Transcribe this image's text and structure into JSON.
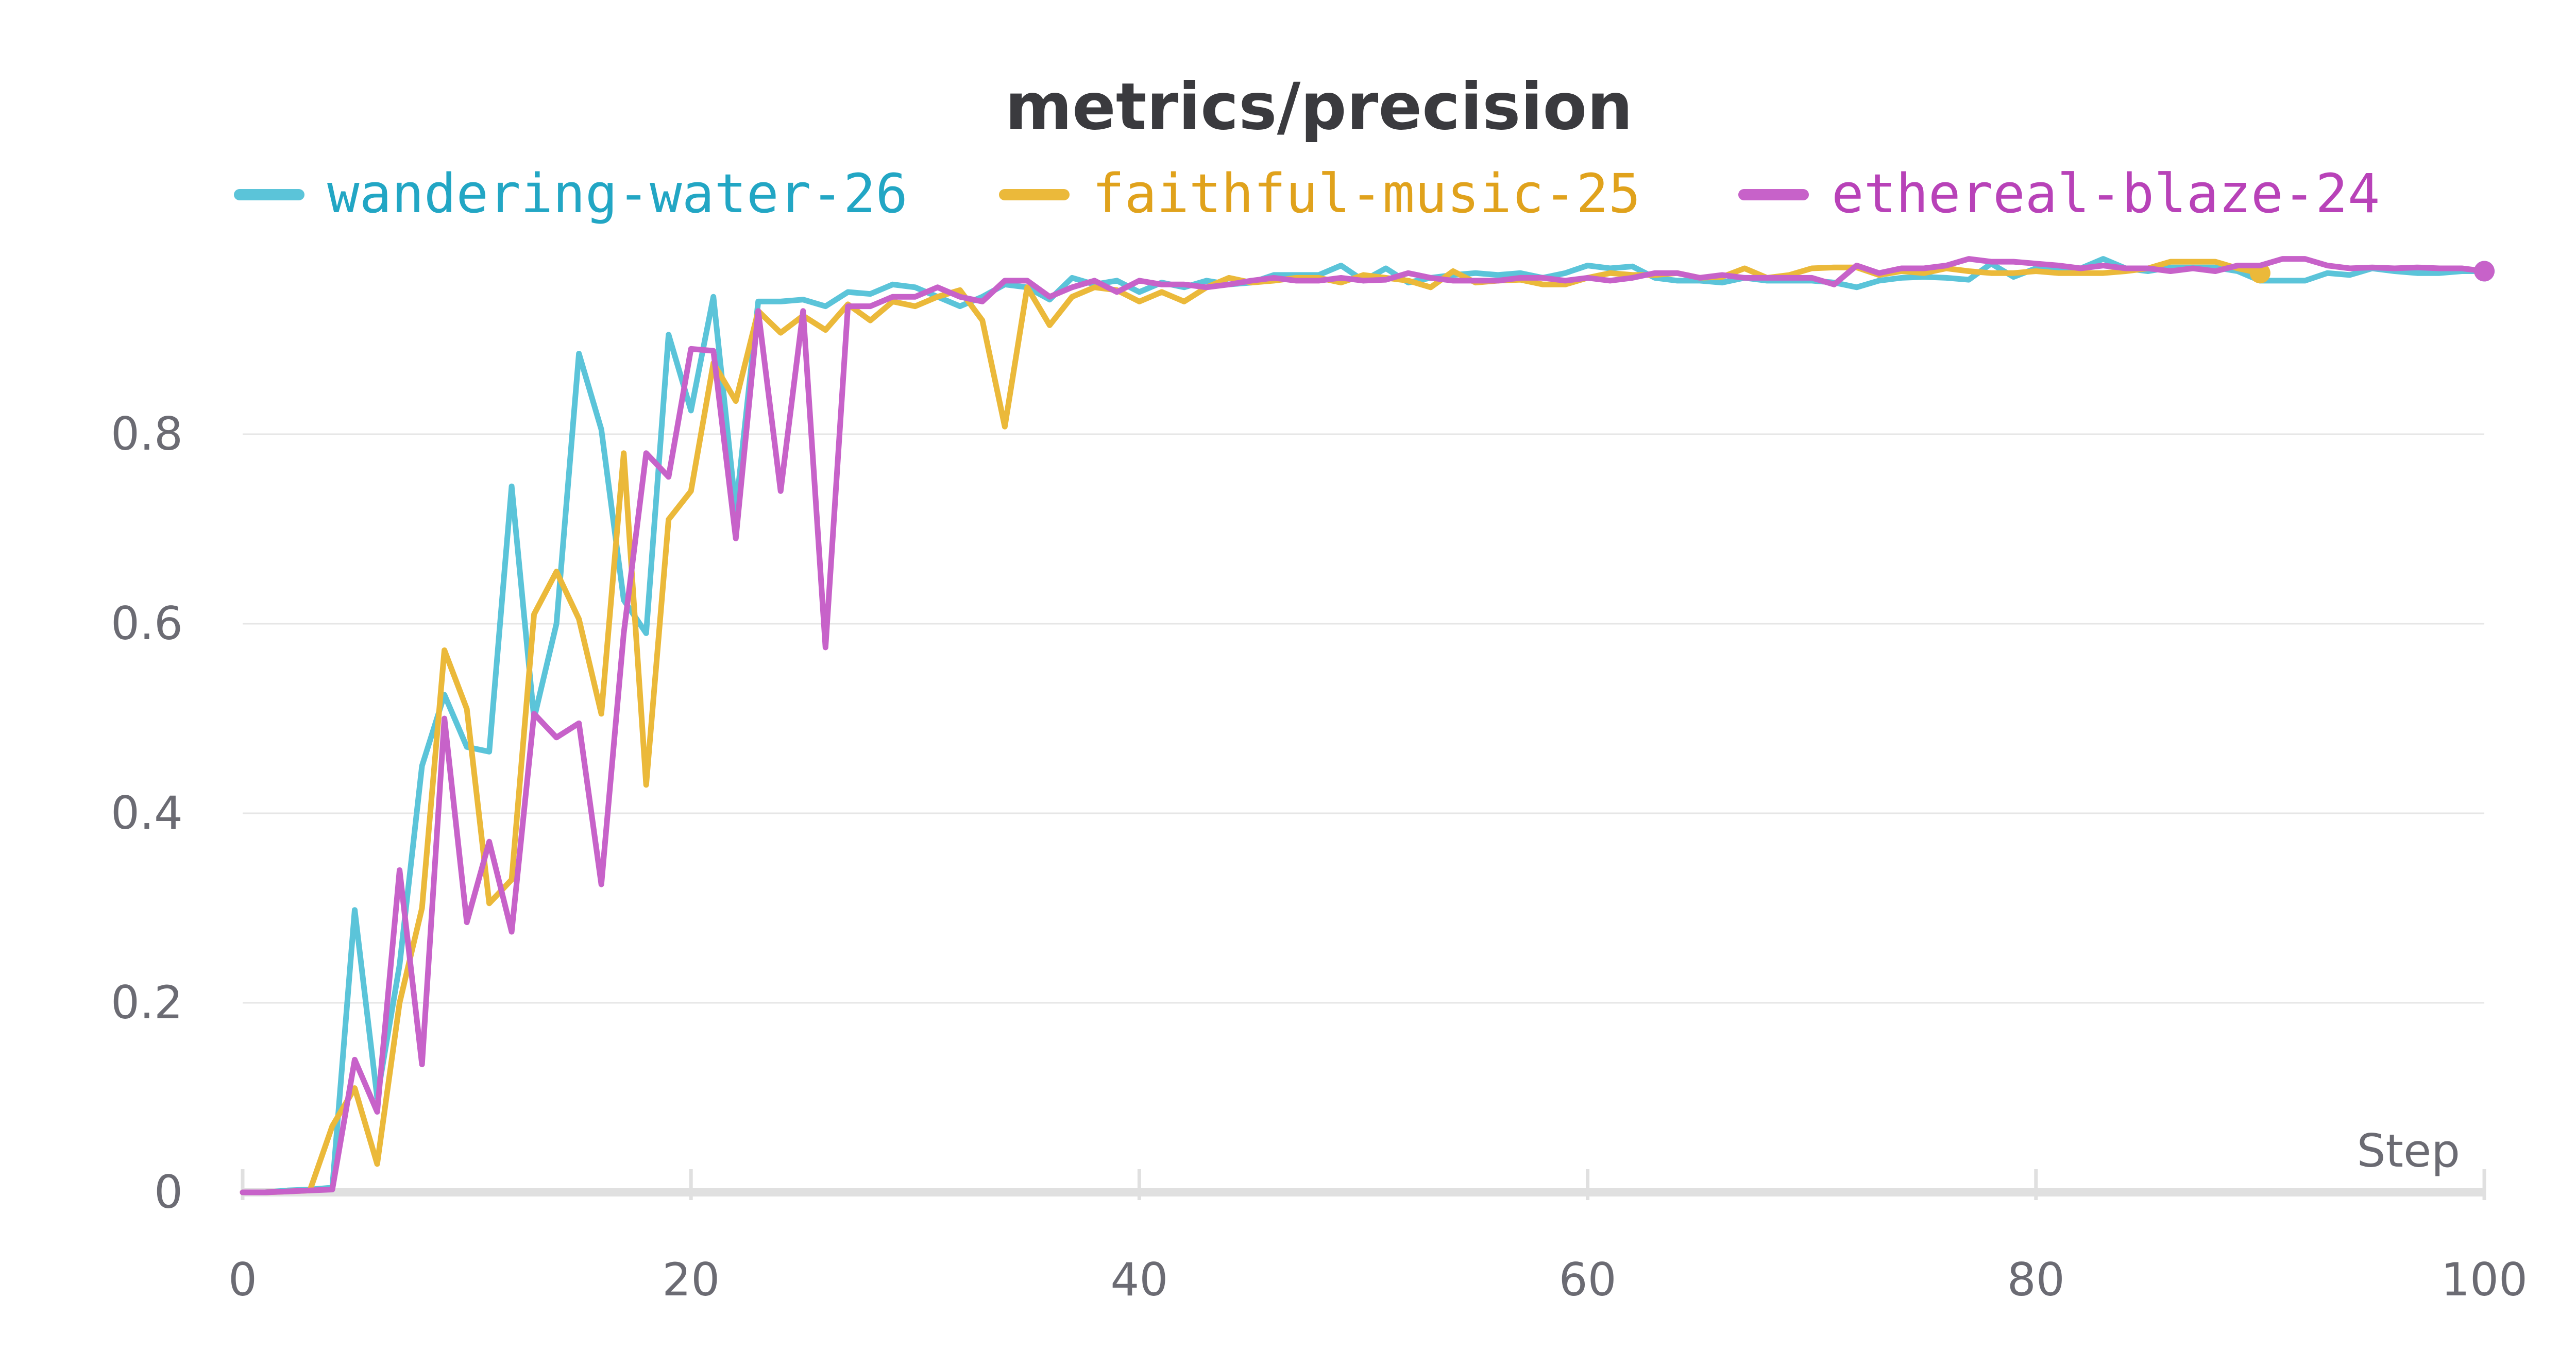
{
  "colors": {
    "background": "#ffffff",
    "grid": "#e6e6e6",
    "axis": "#e0e0e0",
    "tick_text": "#6b6b73",
    "title": "#3a3a3e"
  },
  "chart_data": {
    "type": "line",
    "title": "metrics/precision",
    "xlabel": "Step",
    "ylabel": "",
    "xlim": [
      0,
      100
    ],
    "ylim": [
      0,
      1
    ],
    "grid": true,
    "legend_position": "top",
    "x_ticks": [
      "0",
      "20",
      "40",
      "60",
      "80",
      "100"
    ],
    "y_ticks": [
      "0",
      "0.2",
      "0.4",
      "0.6",
      "0.8"
    ],
    "series": [
      {
        "name": "wandering-water-26",
        "color": "#5bc4d9",
        "legend_color": "#22a6c4",
        "x": [
          0,
          1,
          2,
          3,
          4,
          5,
          6,
          7,
          8,
          9,
          10,
          11,
          12,
          13,
          14,
          15,
          16,
          17,
          18,
          19,
          20,
          21,
          22,
          23,
          24,
          25,
          26,
          27,
          28,
          29,
          30,
          31,
          32,
          33,
          34,
          35,
          36,
          37,
          38,
          39,
          40,
          41,
          42,
          43,
          44,
          45,
          46,
          47,
          48,
          49,
          50,
          51,
          52,
          53,
          54,
          55,
          56,
          57,
          58,
          59,
          60,
          61,
          62,
          63,
          64,
          65,
          66,
          67,
          68,
          69,
          70,
          71,
          72,
          73,
          74,
          75,
          76,
          77,
          78,
          79,
          80,
          81,
          82,
          83,
          84,
          85,
          86,
          87,
          88,
          89,
          90,
          91,
          92,
          93,
          94,
          95,
          96,
          97,
          98,
          99,
          100
        ],
        "y": [
          0,
          0,
          0.002,
          0.003,
          0.005,
          0.298,
          0.1,
          0.24,
          0.45,
          0.525,
          0.47,
          0.465,
          0.745,
          0.5,
          0.6,
          0.885,
          0.805,
          0.625,
          0.59,
          0.905,
          0.825,
          0.945,
          0.72,
          0.94,
          0.94,
          0.942,
          0.935,
          0.95,
          0.948,
          0.958,
          0.955,
          0.945,
          0.935,
          0.945,
          0.958,
          0.955,
          0.942,
          0.965,
          0.958,
          0.962,
          0.95,
          0.96,
          0.955,
          0.962,
          0.958,
          0.96,
          0.968,
          0.968,
          0.968,
          0.978,
          0.962,
          0.975,
          0.96,
          0.965,
          0.968,
          0.97,
          0.968,
          0.97,
          0.965,
          0.97,
          0.978,
          0.975,
          0.977,
          0.965,
          0.962,
          0.962,
          0.96,
          0.965,
          0.962,
          0.962,
          0.962,
          0.96,
          0.955,
          0.962,
          0.965,
          0.966,
          0.965,
          0.963,
          0.98,
          0.966,
          0.975,
          0.975,
          0.975,
          0.985,
          0.975,
          0.972,
          0.976,
          0.976,
          0.976,
          0.972,
          0.962,
          0.962,
          0.962,
          0.97,
          0.968,
          0.975,
          0.972,
          0.97,
          0.97,
          0.972,
          0.972
        ]
      },
      {
        "name": "faithful-music-25",
        "color": "#ebb93a",
        "legend_color": "#e0a21c",
        "x": [
          0,
          1,
          2,
          3,
          4,
          5,
          6,
          7,
          8,
          9,
          10,
          11,
          12,
          13,
          14,
          15,
          16,
          17,
          18,
          19,
          20,
          21,
          22,
          23,
          24,
          25,
          26,
          27,
          28,
          29,
          30,
          31,
          32,
          33,
          34,
          35,
          36,
          37,
          38,
          39,
          40,
          41,
          42,
          43,
          44,
          45,
          46,
          47,
          48,
          49,
          50,
          51,
          52,
          53,
          54,
          55,
          56,
          57,
          58,
          59,
          60,
          61,
          62,
          63,
          64,
          65,
          66,
          67,
          68,
          69,
          70,
          71,
          72,
          73,
          74,
          75,
          76,
          77,
          78,
          79,
          80,
          81,
          82,
          83,
          84,
          85,
          86,
          87,
          88,
          89,
          90
        ],
        "y": [
          0,
          0,
          0.001,
          0.002,
          0.07,
          0.11,
          0.03,
          0.2,
          0.3,
          0.572,
          0.51,
          0.305,
          0.33,
          0.61,
          0.655,
          0.605,
          0.505,
          0.78,
          0.43,
          0.71,
          0.74,
          0.875,
          0.835,
          0.93,
          0.907,
          0.925,
          0.91,
          0.937,
          0.92,
          0.94,
          0.935,
          0.945,
          0.952,
          0.92,
          0.808,
          0.955,
          0.915,
          0.945,
          0.955,
          0.952,
          0.94,
          0.95,
          0.94,
          0.955,
          0.965,
          0.96,
          0.962,
          0.965,
          0.965,
          0.96,
          0.968,
          0.965,
          0.962,
          0.955,
          0.972,
          0.96,
          0.962,
          0.963,
          0.958,
          0.958,
          0.965,
          0.97,
          0.968,
          0.968,
          0.97,
          0.965,
          0.966,
          0.975,
          0.965,
          0.968,
          0.975,
          0.976,
          0.976,
          0.968,
          0.972,
          0.97,
          0.975,
          0.972,
          0.97,
          0.97,
          0.972,
          0.97,
          0.97,
          0.97,
          0.972,
          0.975,
          0.982,
          0.982,
          0.982,
          0.975,
          0.97
        ]
      },
      {
        "name": "ethereal-blaze-24",
        "color": "#c762c9",
        "legend_color": "#b842b8",
        "x": [
          0,
          1,
          2,
          3,
          4,
          5,
          6,
          7,
          8,
          9,
          10,
          11,
          12,
          13,
          14,
          15,
          16,
          17,
          18,
          19,
          20,
          21,
          22,
          23,
          24,
          25,
          26,
          27,
          28,
          29,
          30,
          31,
          32,
          33,
          34,
          35,
          36,
          37,
          38,
          39,
          40,
          41,
          42,
          43,
          44,
          45,
          46,
          47,
          48,
          49,
          50,
          51,
          52,
          53,
          54,
          55,
          56,
          57,
          58,
          59,
          60,
          61,
          62,
          63,
          64,
          65,
          66,
          67,
          68,
          69,
          70,
          71,
          72,
          73,
          74,
          75,
          76,
          77,
          78,
          79,
          80,
          81,
          82,
          83,
          84,
          85,
          86,
          87,
          88,
          89,
          90,
          91,
          92,
          93,
          94,
          95,
          96,
          97,
          98,
          99,
          100
        ],
        "y": [
          0,
          0,
          0.001,
          0.002,
          0.003,
          0.14,
          0.085,
          0.34,
          0.135,
          0.5,
          0.285,
          0.37,
          0.275,
          0.505,
          0.48,
          0.495,
          0.325,
          0.59,
          0.78,
          0.755,
          0.89,
          0.888,
          0.69,
          0.93,
          0.74,
          0.93,
          0.575,
          0.935,
          0.935,
          0.945,
          0.945,
          0.955,
          0.945,
          0.94,
          0.962,
          0.962,
          0.945,
          0.955,
          0.962,
          0.95,
          0.962,
          0.958,
          0.958,
          0.955,
          0.958,
          0.962,
          0.965,
          0.962,
          0.962,
          0.965,
          0.962,
          0.963,
          0.97,
          0.965,
          0.962,
          0.962,
          0.962,
          0.965,
          0.965,
          0.962,
          0.965,
          0.962,
          0.965,
          0.97,
          0.97,
          0.965,
          0.968,
          0.965,
          0.965,
          0.965,
          0.965,
          0.958,
          0.978,
          0.97,
          0.975,
          0.975,
          0.978,
          0.985,
          0.982,
          0.982,
          0.98,
          0.978,
          0.975,
          0.978,
          0.975,
          0.975,
          0.972,
          0.975,
          0.972,
          0.978,
          0.978,
          0.985,
          0.985,
          0.978,
          0.975,
          0.976,
          0.975,
          0.976,
          0.975,
          0.975,
          0.972
        ]
      }
    ]
  }
}
